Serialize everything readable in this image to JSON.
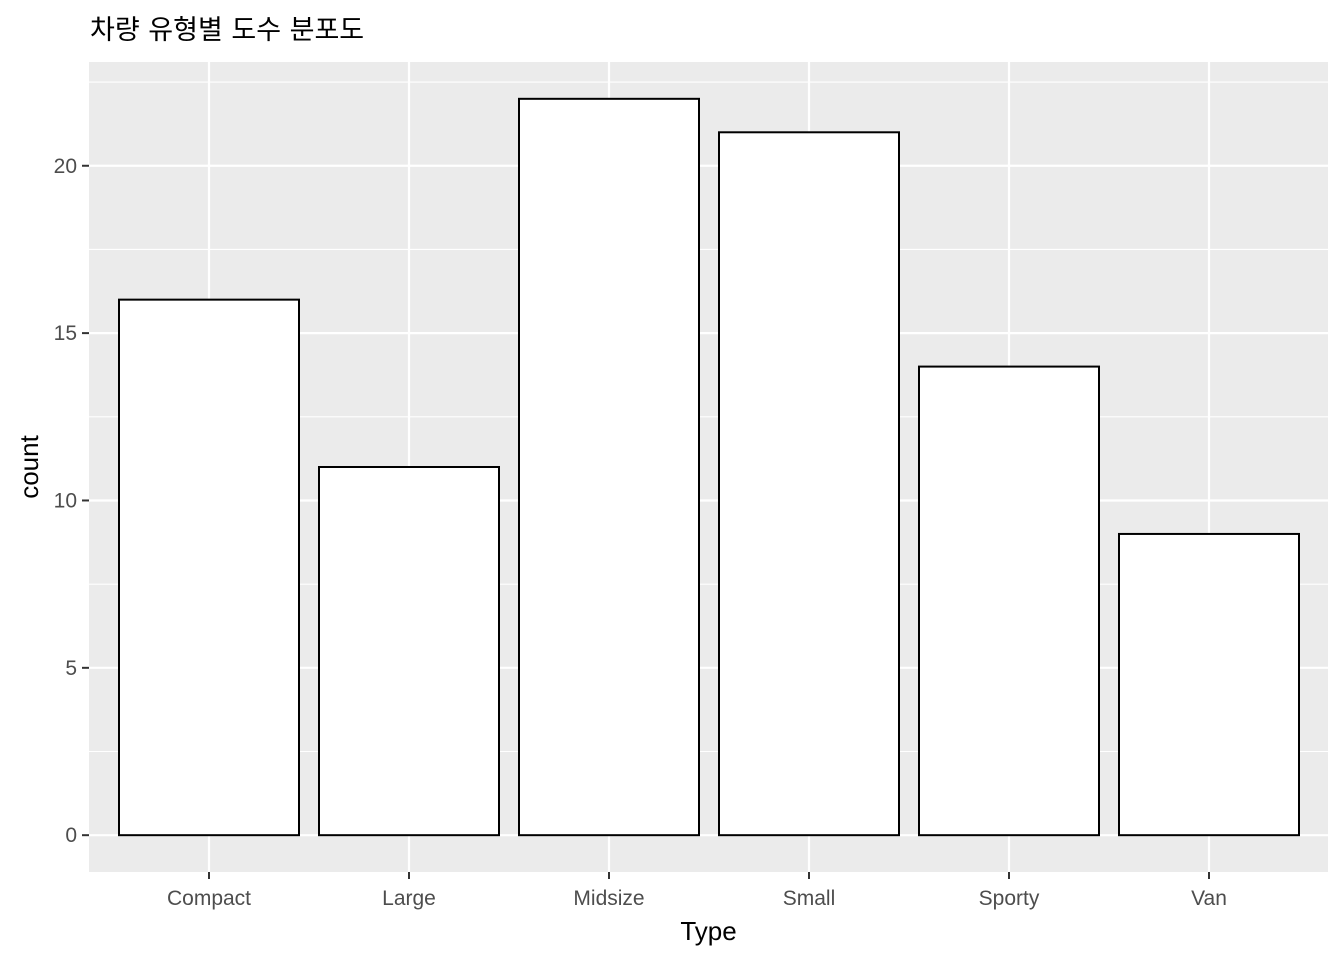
{
  "chart_data": {
    "type": "bar",
    "title": "차량 유형별 도수 분포도",
    "xlabel": "Type",
    "ylabel": "count",
    "categories": [
      "Compact",
      "Large",
      "Midsize",
      "Small",
      "Sporty",
      "Van"
    ],
    "values": [
      16,
      11,
      22,
      21,
      14,
      9
    ],
    "ylim": [
      -1.1,
      23.1
    ],
    "yticks": [
      0,
      5,
      10,
      15,
      20
    ],
    "grid": true,
    "legend": "none",
    "colors": {
      "panel": "#ebebeb",
      "grid_major": "#ffffff",
      "bar_fill": "#ffffff",
      "bar_stroke": "#000000",
      "tick_text": "#4d4d4d",
      "tick_mark": "#333333"
    }
  }
}
